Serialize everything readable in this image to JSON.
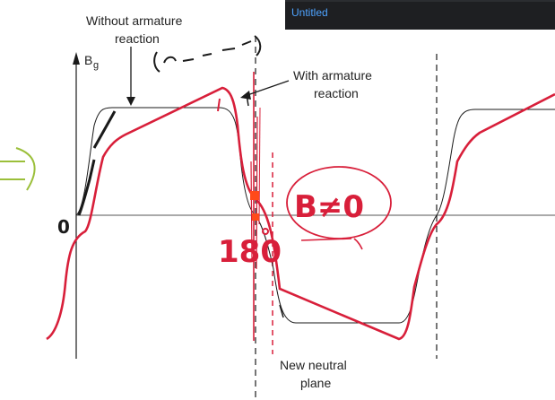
{
  "overlay": {
    "title": "Untitled"
  },
  "labels": {
    "without": [
      "Without armature",
      "reaction"
    ],
    "with": [
      "With armature",
      "reaction"
    ],
    "axis_b": "B",
    "axis_b_sub": "g",
    "neutral": [
      "New neutral",
      "plane"
    ]
  },
  "handwriting": {
    "zero": "0",
    "deg": "180",
    "b_ne_0": "B≠0"
  },
  "colors": {
    "red": "#d81f3a",
    "black": "#1a1a1a",
    "green": "#9bbf3a",
    "overlay_bg": "#1e1f22",
    "overlay_text": "#4ea3ff"
  }
}
